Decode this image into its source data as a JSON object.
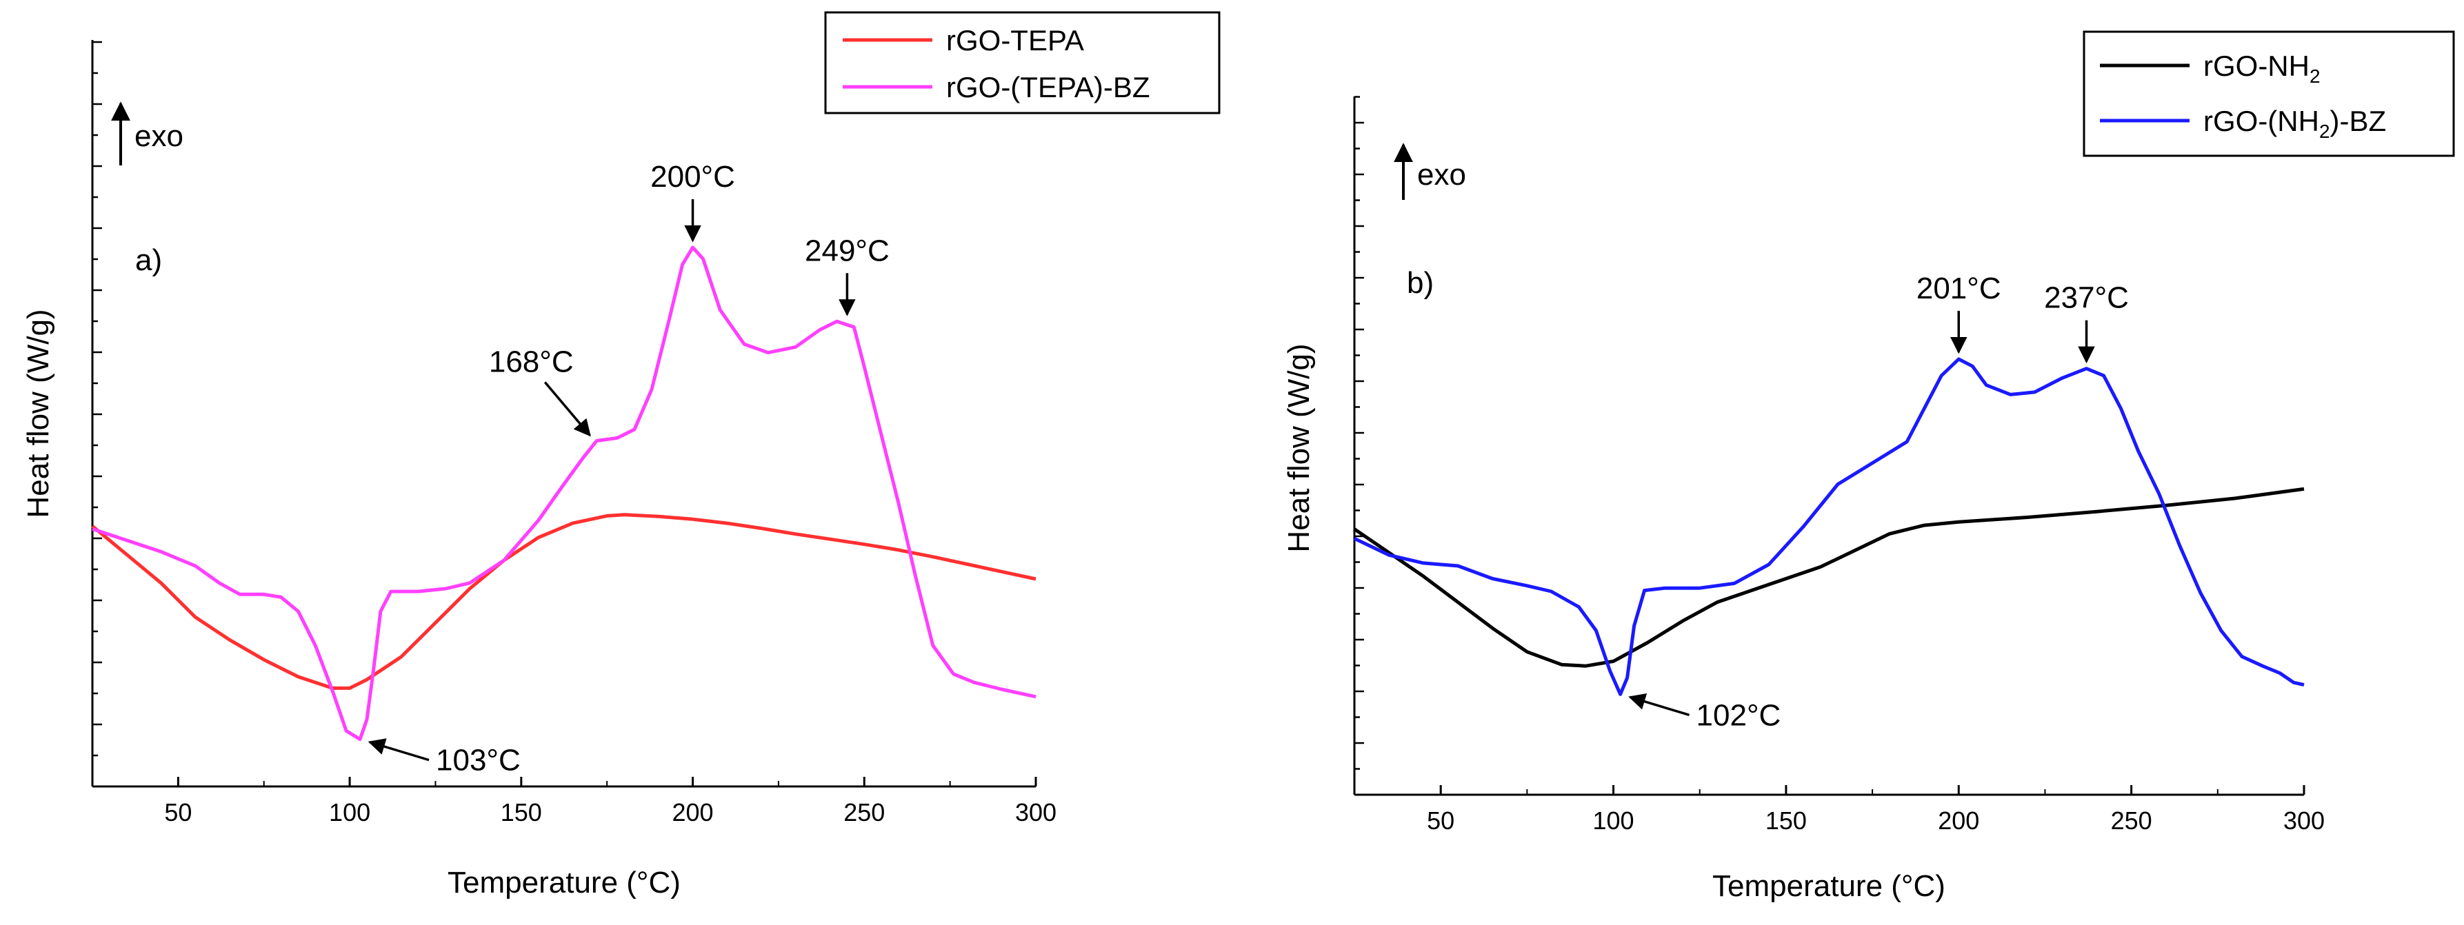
{
  "figure": {
    "panels": [
      "a",
      "b"
    ]
  },
  "chart_data": [
    {
      "type": "line",
      "panel_label": "a)",
      "xlabel": "Temperature (°C)",
      "ylabel": "Heat flow (W/g)",
      "exo_label": "exo",
      "xlim": [
        25,
        300
      ],
      "ylim": [
        0,
        100
      ],
      "y_ticks_labeled": false,
      "x_ticks": [
        "50",
        "100",
        "150",
        "200",
        "250",
        "300"
      ],
      "x_tick_values": [
        50,
        100,
        150,
        200,
        250,
        300
      ],
      "legend": {
        "position": "top-right",
        "entries": [
          "rGO-TEPA",
          "rGO-(TEPA)-BZ"
        ]
      },
      "series": [
        {
          "name": "rGO-TEPA",
          "color": "#ff3030",
          "points": [
            [
              25,
              39
            ],
            [
              35,
              34
            ],
            [
              45,
              29
            ],
            [
              55,
              23
            ],
            [
              65,
              19
            ],
            [
              75,
              15.5
            ],
            [
              85,
              12.5
            ],
            [
              95,
              10.5
            ],
            [
              100,
              10.5
            ],
            [
              105,
              12
            ],
            [
              115,
              16
            ],
            [
              125,
              22
            ],
            [
              135,
              28
            ],
            [
              145,
              33
            ],
            [
              155,
              37
            ],
            [
              165,
              39.5
            ],
            [
              175,
              40.8
            ],
            [
              180,
              41
            ],
            [
              190,
              40.7
            ],
            [
              200,
              40.2
            ],
            [
              210,
              39.5
            ],
            [
              220,
              38.6
            ],
            [
              230,
              37.6
            ],
            [
              240,
              36.7
            ],
            [
              250,
              35.8
            ],
            [
              260,
              34.8
            ],
            [
              270,
              33.6
            ],
            [
              280,
              32.3
            ],
            [
              290,
              31
            ],
            [
              300,
              29.7
            ]
          ]
        },
        {
          "name": "rGO-(TEPA)-BZ",
          "color": "#ff40ff",
          "points": [
            [
              25,
              38.5
            ],
            [
              35,
              36.5
            ],
            [
              45,
              34.5
            ],
            [
              55,
              32
            ],
            [
              62,
              29
            ],
            [
              68,
              27
            ],
            [
              75,
              27
            ],
            [
              80,
              26.5
            ],
            [
              85,
              24
            ],
            [
              90,
              18
            ],
            [
              95,
              10
            ],
            [
              99,
              3
            ],
            [
              103,
              1.5
            ],
            [
              105,
              5
            ],
            [
              107,
              14
            ],
            [
              109,
              24
            ],
            [
              112,
              27.5
            ],
            [
              120,
              27.5
            ],
            [
              128,
              28
            ],
            [
              135,
              29
            ],
            [
              145,
              33
            ],
            [
              155,
              40
            ],
            [
              162,
              46
            ],
            [
              168,
              51
            ],
            [
              172,
              54
            ],
            [
              178,
              54.5
            ],
            [
              183,
              56
            ],
            [
              188,
              63
            ],
            [
              193,
              75
            ],
            [
              197,
              85
            ],
            [
              200,
              88
            ],
            [
              203,
              86
            ],
            [
              208,
              77
            ],
            [
              215,
              71
            ],
            [
              222,
              69.5
            ],
            [
              230,
              70.5
            ],
            [
              237,
              73.5
            ],
            [
              242,
              75
            ],
            [
              247,
              74
            ],
            [
              250,
              67
            ],
            [
              255,
              55
            ],
            [
              260,
              43
            ],
            [
              265,
              30
            ],
            [
              270,
              18
            ],
            [
              276,
              13
            ],
            [
              282,
              11.5
            ],
            [
              290,
              10.3
            ],
            [
              300,
              9
            ]
          ]
        }
      ],
      "annotations": [
        {
          "text": "103°C",
          "x": 103,
          "y": 1.5,
          "arrow_dir": "up-left"
        },
        {
          "text": "168°C",
          "x": 172,
          "y": 54,
          "arrow_dir": "down-right"
        },
        {
          "text": "200°C",
          "x": 200,
          "y": 88,
          "arrow_dir": "down"
        },
        {
          "text": "249°C",
          "x": 245,
          "y": 75,
          "arrow_dir": "down"
        }
      ]
    },
    {
      "type": "line",
      "panel_label": "b)",
      "xlabel": "Temperature (°C)",
      "ylabel": "Heat flow (W/g)",
      "exo_label": "exo",
      "xlim": [
        25,
        300
      ],
      "ylim": [
        0,
        100
      ],
      "y_ticks_labeled": false,
      "x_ticks": [
        "50",
        "100",
        "150",
        "200",
        "250",
        "300"
      ],
      "x_tick_values": [
        50,
        100,
        150,
        200,
        250,
        300
      ],
      "legend": {
        "position": "top-right",
        "entries": [
          "rGO-NH",
          "rGO-(NH",
          ")-BZ"
        ],
        "subscript": "2"
      },
      "series": [
        {
          "name": "rGO-NH2",
          "color": "#000000",
          "points": [
            [
              25,
              40.5
            ],
            [
              35,
              35.5
            ],
            [
              45,
              30.5
            ],
            [
              55,
              25
            ],
            [
              65,
              19.5
            ],
            [
              75,
              14.5
            ],
            [
              85,
              11.8
            ],
            [
              92,
              11.5
            ],
            [
              100,
              12.5
            ],
            [
              110,
              16.5
            ],
            [
              120,
              21
            ],
            [
              130,
              25
            ],
            [
              140,
              27.5
            ],
            [
              150,
              30
            ],
            [
              160,
              32.5
            ],
            [
              170,
              36
            ],
            [
              180,
              39.5
            ],
            [
              190,
              41.3
            ],
            [
              200,
              42
            ],
            [
              220,
              43
            ],
            [
              240,
              44.2
            ],
            [
              260,
              45.5
            ],
            [
              280,
              47
            ],
            [
              300,
              49
            ]
          ]
        },
        {
          "name": "rGO-(NH2)-BZ",
          "color": "#1a1aff",
          "points": [
            [
              25,
              38.5
            ],
            [
              35,
              35
            ],
            [
              45,
              33.3
            ],
            [
              55,
              32.7
            ],
            [
              65,
              30
            ],
            [
              75,
              28.5
            ],
            [
              82,
              27.3
            ],
            [
              90,
              24
            ],
            [
              95,
              19
            ],
            [
              99,
              10.5
            ],
            [
              102,
              5.5
            ],
            [
              104,
              9
            ],
            [
              106,
              20
            ],
            [
              109,
              27.5
            ],
            [
              115,
              28
            ],
            [
              125,
              28
            ],
            [
              135,
              29
            ],
            [
              145,
              33
            ],
            [
              155,
              41
            ],
            [
              165,
              50
            ],
            [
              175,
              54.5
            ],
            [
              185,
              59
            ],
            [
              190,
              66
            ],
            [
              195,
              73
            ],
            [
              200,
              76.5
            ],
            [
              204,
              75
            ],
            [
              208,
              71
            ],
            [
              215,
              69
            ],
            [
              222,
              69.5
            ],
            [
              230,
              72.5
            ],
            [
              237,
              74.5
            ],
            [
              242,
              73
            ],
            [
              247,
              66
            ],
            [
              252,
              57
            ],
            [
              258,
              48
            ],
            [
              264,
              37
            ],
            [
              270,
              27
            ],
            [
              276,
              19
            ],
            [
              282,
              13.5
            ],
            [
              288,
              11.5
            ],
            [
              293,
              10
            ],
            [
              297,
              8
            ],
            [
              300,
              7.5
            ]
          ]
        }
      ],
      "annotations": [
        {
          "text": "102°C",
          "x": 102,
          "y": 5.5,
          "arrow_dir": "up-left"
        },
        {
          "text": "201°C",
          "x": 200,
          "y": 76.5,
          "arrow_dir": "down"
        },
        {
          "text": "237°C",
          "x": 237,
          "y": 74.5,
          "arrow_dir": "down"
        }
      ]
    }
  ]
}
